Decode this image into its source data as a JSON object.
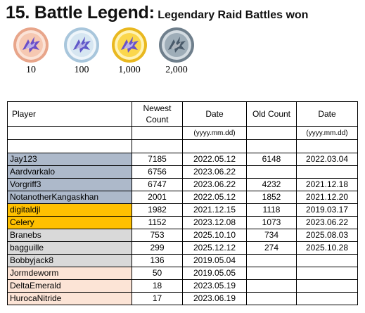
{
  "title": {
    "main": "15. Battle Legend:",
    "sub": "Legendary Raid Battles won"
  },
  "medals": [
    {
      "label": "10",
      "tier": "bronze"
    },
    {
      "label": "100",
      "tier": "silver"
    },
    {
      "label": "1,000",
      "tier": "gold"
    },
    {
      "label": "2,000",
      "tier": "platinum"
    }
  ],
  "colors": {
    "platinum": "#adb9ca",
    "gold": "#ffc000",
    "silver": "#d9d9d9",
    "bronze": "#fce4d6"
  },
  "table": {
    "headers": {
      "player": "Player",
      "newest_count": "Newest Count",
      "date": "Date",
      "old_count": "Old Count",
      "old_date": "Date"
    },
    "date_format": "(yyyy.mm.dd)",
    "rows": [
      {
        "player": "Jay123",
        "newest": "7185",
        "date": "2022.05.12",
        "old": "6148",
        "old_date": "2022.03.04",
        "tier": "platinum"
      },
      {
        "player": "Aardvarkalo",
        "newest": "6756",
        "date": "2023.06.22",
        "old": "",
        "old_date": "",
        "tier": "platinum"
      },
      {
        "player": "Vorgriff3",
        "newest": "6747",
        "date": "2023.06.22",
        "old": "4232",
        "old_date": "2021.12.18",
        "tier": "platinum"
      },
      {
        "player": "NotanotherKangaskhan",
        "newest": "2001",
        "date": "2022.05.12",
        "old": "1852",
        "old_date": "2021.12.20",
        "tier": "platinum"
      },
      {
        "player": "digitaldjl",
        "newest": "1982",
        "date": "2021.12.15",
        "old": "1118",
        "old_date": "2019.03.17",
        "tier": "gold"
      },
      {
        "player": "Celery",
        "newest": "1152",
        "date": "2023.12.08",
        "old": "1073",
        "old_date": "2023.06.22",
        "tier": "gold"
      },
      {
        "player": "Branebs",
        "newest": "753",
        "date": "2025.10.10",
        "old": "734",
        "old_date": "2025.08.03",
        "tier": "silver"
      },
      {
        "player": "bagguille",
        "newest": "299",
        "date": "2025.12.12",
        "old": "274",
        "old_date": "2025.10.28",
        "tier": "silver"
      },
      {
        "player": "Bobbyjack8",
        "newest": "136",
        "date": "2019.05.04",
        "old": "",
        "old_date": "",
        "tier": "silver"
      },
      {
        "player": "Jormdeworm",
        "newest": "50",
        "date": "2019.05.05",
        "old": "",
        "old_date": "",
        "tier": "bronze"
      },
      {
        "player": "DeltaEmerald",
        "newest": "18",
        "date": "2023.05.19",
        "old": "",
        "old_date": "",
        "tier": "bronze"
      },
      {
        "player": "HurocaNitride",
        "newest": "17",
        "date": "2023.06.19",
        "old": "",
        "old_date": "",
        "tier": "bronze"
      }
    ]
  }
}
